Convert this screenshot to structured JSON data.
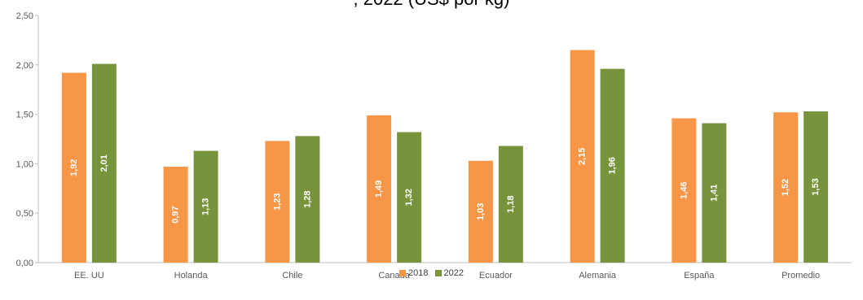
{
  "chart_data": {
    "type": "bar",
    "title": "",
    "title_partial": ", 2022 (US$ por kg)",
    "categories": [
      "EE. UU",
      "Holanda",
      "Chile",
      "Canada",
      "Ecuador",
      "Alemania",
      "España",
      "Promedio"
    ],
    "series": [
      {
        "name": "2018",
        "color": "#F79646",
        "values": [
          1.92,
          0.97,
          1.23,
          1.49,
          1.03,
          2.15,
          1.46,
          1.52
        ],
        "labels": [
          "1,92",
          "0,97",
          "1,23",
          "1,49",
          "1,03",
          "2,15",
          "1,46",
          "1,52"
        ]
      },
      {
        "name": "2022",
        "color": "#77933C",
        "values": [
          2.01,
          1.13,
          1.28,
          1.32,
          1.18,
          1.96,
          1.41,
          1.53
        ],
        "labels": [
          "2,01",
          "1,13",
          "1,28",
          "1,32",
          "1,18",
          "1,96",
          "1,41",
          "1,53"
        ]
      }
    ],
    "ylim": [
      0,
      2.5
    ],
    "yticks": [
      "0,00",
      "0,50",
      "1,00",
      "1,50",
      "2,00",
      "2,50"
    ],
    "grid": false,
    "legend_position": "bottom"
  }
}
